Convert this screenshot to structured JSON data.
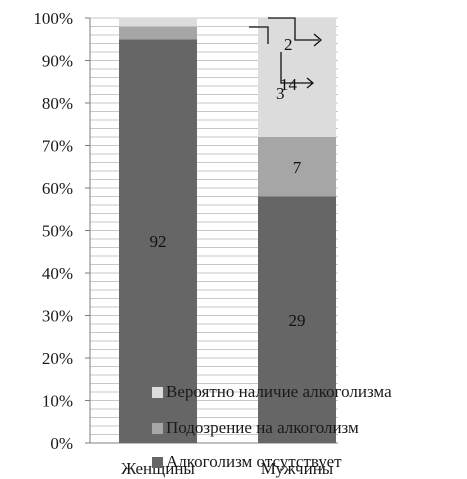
{
  "chart_data": {
    "type": "bar",
    "stacked": true,
    "normalized_percent": true,
    "categories": [
      "Женщины",
      "Мужчины"
    ],
    "series": [
      {
        "name": "Алкоголизм отсутствует",
        "values": [
          92,
          29
        ],
        "labels": [
          "92",
          "29"
        ],
        "percent": [
          95,
          58
        ],
        "color": "#666666"
      },
      {
        "name": "Подозрение на алкоголизм",
        "values": [
          3,
          7
        ],
        "labels": [
          "3",
          "7"
        ],
        "percent": [
          3,
          14
        ],
        "color": "#a6a6a6"
      },
      {
        "name": "Вероятно наличие алкоголизма",
        "values": [
          2,
          14
        ],
        "labels": [
          "2",
          "14"
        ],
        "percent": [
          2,
          28
        ],
        "color": "#dcdcdc"
      }
    ],
    "y_ticks": [
      "0%",
      "10%",
      "20%",
      "30%",
      "40%",
      "50%",
      "60%",
      "70%",
      "80%",
      "90%",
      "100%"
    ],
    "ylim": [
      0,
      100
    ],
    "grid": true,
    "legend_position": "bottom-right, overlapping plot",
    "title": "",
    "xlabel": "",
    "ylabel": ""
  }
}
